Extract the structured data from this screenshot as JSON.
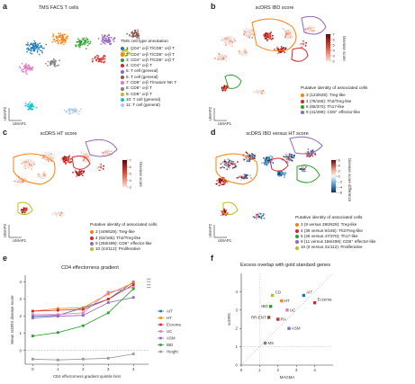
{
  "panels": {
    "a": {
      "label": "a",
      "title": "TMS FACS T cells",
      "umap_x": "UMAP1",
      "umap_y": "UMAP2",
      "legend_title": "TMS cell type annotation",
      "legend": [
        {
          "text": "1: CD4⁺ α-β T/CD8⁺ α-β T",
          "color": "#1f77b4"
        },
        {
          "text": "2: CD4⁺ α-β T/CD8⁺ α-β T",
          "color": "#ff7f0e"
        },
        {
          "text": "3: CD4⁺ α-β T/CD8⁺ α-β T",
          "color": "#2ca02c"
        },
        {
          "text": "4: CD4⁺ α-β T",
          "color": "#d62728"
        },
        {
          "text": "5: T cell (general)",
          "color": "#9467bd"
        },
        {
          "text": "6: T cell (general)",
          "color": "#8c564b"
        },
        {
          "text": "7: CD8⁺ α-β T/mature NK T",
          "color": "#e377c2"
        },
        {
          "text": "8: CD8⁺ α-β T",
          "color": "#7f7f7f"
        },
        {
          "text": "9: CD8⁺ α-β T",
          "color": "#bcbd22"
        },
        {
          "text": "10: T cell (general)",
          "color": "#17becf"
        },
        {
          "text": "11: T cell (general)",
          "color": "#aec7e8"
        }
      ]
    },
    "b": {
      "label": "b",
      "title": "scDRS IBD score",
      "colorbar_label": "Disease score",
      "colorbar_ticks": [
        "7",
        "6",
        "5",
        "4",
        "3",
        "2"
      ],
      "umap_x": "UMAP1",
      "umap_y": "UMAP2",
      "legend_title": "Putative identity of associated cells",
      "legend": [
        {
          "text": "3 (123/629): Treg-like",
          "color": "#ff7f0e"
        },
        {
          "text": "4 (78/165): Th2/Treg-like",
          "color": "#d62728"
        },
        {
          "text": "5 (65/370): Th17-like",
          "color": "#2ca02c"
        },
        {
          "text": "9 (41/499): CD8⁺ effector-like",
          "color": "#9467bd"
        }
      ]
    },
    "c": {
      "label": "c",
      "title": "scDRS HT score",
      "colorbar_label": "Disease score",
      "colorbar_ticks": [
        "7",
        "6",
        "5",
        "4",
        "3"
      ],
      "umap_x": "UMAP1",
      "umap_y": "UMAP2",
      "legend_title": "Putative identity of associated cells",
      "legend": [
        {
          "text": "3 (449/629): Treg-like",
          "color": "#ff7f0e"
        },
        {
          "text": "4 (63/165): Th2/Treg-like",
          "color": "#d62728"
        },
        {
          "text": "9 (258/499): CD8⁺ effector-like",
          "color": "#9467bd"
        },
        {
          "text": "10 (44/112): Proliferative",
          "color": "#bcbd22"
        }
      ]
    },
    "d": {
      "label": "d",
      "title": "scDRS IBD versus HT score",
      "colorbar_label": "Disease score difference",
      "colorbar_ticks": [
        "6",
        "4",
        "2",
        "0",
        "−2",
        "−4",
        "−6"
      ],
      "umap_x": "UMAP1",
      "umap_y": "UMAP2",
      "legend_title": "Putative identity of associated cells",
      "legend": [
        {
          "text": "3 (9 versus 290/629): Treg-like",
          "color": "#ff7f0e"
        },
        {
          "text": "4 (39 versus 5/165): Th2/Treg-like",
          "color": "#d62728"
        },
        {
          "text": "5 (26 versus 47/370): Th17-like",
          "color": "#2ca02c"
        },
        {
          "text": "9 (11 versus 156/499): CD8⁺ effector-like",
          "color": "#9467bd"
        },
        {
          "text": "10 (0 versus 31/112): Proliferative",
          "color": "#bcbd22"
        }
      ]
    },
    "e": {
      "label": "e",
      "title": "CD4 effectorness gradient",
      "stars": [
        "***",
        "***",
        "***",
        "***"
      ]
    },
    "f": {
      "label": "f",
      "title": "Excess overlap with gold standard genes"
    }
  },
  "chart_data": [
    {
      "type": "line",
      "title": "CD4 effectorness gradient",
      "xlabel": "CD4 effectorness gradient quintile bins",
      "ylabel": "Mean scDRS disease score",
      "x": [
        0,
        1,
        2,
        3,
        4
      ],
      "xlim": [
        -0.3,
        4.6
      ],
      "ylim": [
        -0.8,
        4.4
      ],
      "yticks": [
        0,
        1,
        2,
        3,
        4
      ],
      "xticks": [
        0,
        1,
        2,
        3,
        4
      ],
      "grid": false,
      "legend_position": "right",
      "series": [
        {
          "name": "AIT",
          "color": "#1f77b4",
          "values": [
            2.0,
            2.05,
            2.5,
            3.0,
            4.0
          ]
        },
        {
          "name": "HT",
          "color": "#ff7f0e",
          "values": [
            2.3,
            2.45,
            2.5,
            3.3,
            3.95
          ]
        },
        {
          "name": "Eczema",
          "color": "#d62728",
          "values": [
            2.3,
            2.35,
            2.4,
            3.0,
            3.85
          ]
        },
        {
          "name": "UC",
          "color": "#e377c2",
          "values": [
            2.1,
            2.1,
            2.2,
            3.4,
            3.7
          ]
        },
        {
          "name": "ASM",
          "color": "#9467bd",
          "values": [
            1.9,
            2.0,
            2.05,
            2.8,
            3.1
          ]
        },
        {
          "name": "IBD",
          "color": "#2ca02c",
          "values": [
            0.85,
            1.05,
            1.45,
            2.2,
            3.6
          ]
        },
        {
          "name": "Height",
          "color": "#999999",
          "values": [
            -0.5,
            -0.55,
            -0.5,
            -0.45,
            -0.2
          ]
        }
      ]
    },
    {
      "type": "scatter",
      "title": "Excess overlap with gold standard genes",
      "xlabel": "MAGMA",
      "ylabel": "scDRS",
      "xlim": [
        0,
        5
      ],
      "ylim": [
        0,
        5
      ],
      "xticks": [
        0,
        1,
        2,
        3,
        4
      ],
      "yticks": [
        0,
        1,
        2,
        3,
        4
      ],
      "points": [
        {
          "label": "AIT",
          "x": 3.4,
          "y": 3.8,
          "color": "#1f77b4"
        },
        {
          "label": "Eczema",
          "x": 4.0,
          "y": 3.4,
          "color": "#d62728"
        },
        {
          "label": "CD",
          "x": 1.7,
          "y": 3.8,
          "color": "#bcbd22"
        },
        {
          "label": "HT",
          "x": 2.2,
          "y": 3.5,
          "color": "#ff7f0e"
        },
        {
          "label": "IBD",
          "x": 1.6,
          "y": 3.2,
          "color": "#2ca02c"
        },
        {
          "label": "UC",
          "x": 2.5,
          "y": 3.0,
          "color": "#e377c2"
        },
        {
          "label": "RR-ENT",
          "x": 1.5,
          "y": 2.6,
          "color": "#8c564b"
        },
        {
          "label": "RA",
          "x": 2.0,
          "y": 2.5,
          "color": "#d62728"
        },
        {
          "label": "ASM",
          "x": 2.6,
          "y": 2.0,
          "color": "#9467bd"
        },
        {
          "label": "MS",
          "x": 1.3,
          "y": 1.2,
          "color": "#7f7f7f"
        }
      ]
    }
  ]
}
